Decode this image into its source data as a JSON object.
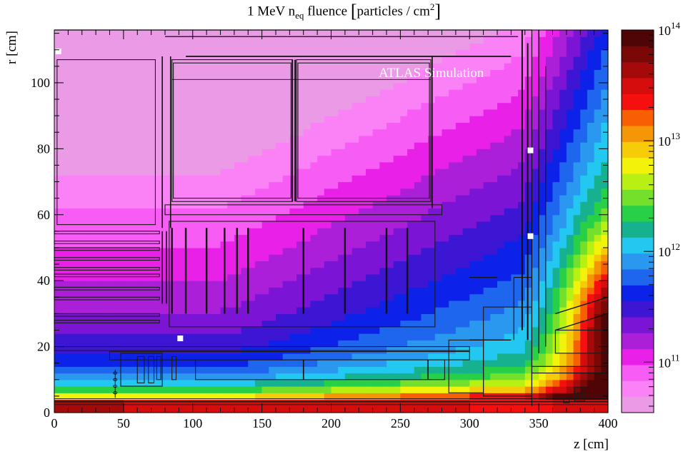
{
  "chart_data": {
    "type": "heatmap",
    "title": {
      "prefix": "1 MeV n",
      "subscript": "eq",
      "middle": " fluence ",
      "unit_open": "[",
      "unit_text": "particles / cm",
      "unit_sup": "2",
      "unit_close": "]"
    },
    "annotation": "ATLAS Simulation",
    "xlabel": "z [cm]",
    "ylabel": "r [cm]",
    "xlim": [
      0,
      400
    ],
    "ylim": [
      0,
      116
    ],
    "x_ticks": [
      0,
      50,
      100,
      150,
      200,
      250,
      300,
      350,
      400
    ],
    "y_ticks": [
      0,
      20,
      40,
      60,
      80,
      100
    ],
    "z_scale": "log",
    "zlim": [
      35000000000.0,
      100000000000000.0
    ],
    "z_ticks": [
      {
        "value": 100000000000.0,
        "base": "10",
        "exp": "11"
      },
      {
        "value": 1000000000000.0,
        "base": "10",
        "exp": "12"
      },
      {
        "value": 10000000000000.0,
        "base": "10",
        "exp": "13"
      },
      {
        "value": 100000000000000.0,
        "base": "10",
        "exp": "14"
      }
    ],
    "palette": [
      "#eb9be6",
      "#fa82f6",
      "#f75cf5",
      "#e820e8",
      "#ab1fd9",
      "#7c14d6",
      "#3d16d4",
      "#0d22e8",
      "#1f66ee",
      "#2b98f0",
      "#23c8f1",
      "#16b18f",
      "#27d046",
      "#74e02c",
      "#b8f013",
      "#f2f20a",
      "#f5cc07",
      "#f49605",
      "#f85f04",
      "#f50f0f",
      "#d50d0d",
      "#a50a0a",
      "#790807",
      "#4f0505"
    ],
    "fluence_model": {
      "description": "Approximate log10 fluence over (z [cm], r [cm]) read from colour regions",
      "beam_pipe_r_max": 3.2,
      "beam_pipe_value_log10": [
        13.65,
        13.55,
        13.4,
        13.55
      ],
      "beam_pipe_z_breaks": [
        0,
        50,
        300,
        360,
        400
      ]
    },
    "markers": [
      {
        "z": 3,
        "r": 109.5
      },
      {
        "z": 91,
        "r": 22.5
      },
      {
        "z": 344,
        "r": 79.5
      },
      {
        "z": 344,
        "r": 53.5
      }
    ]
  }
}
